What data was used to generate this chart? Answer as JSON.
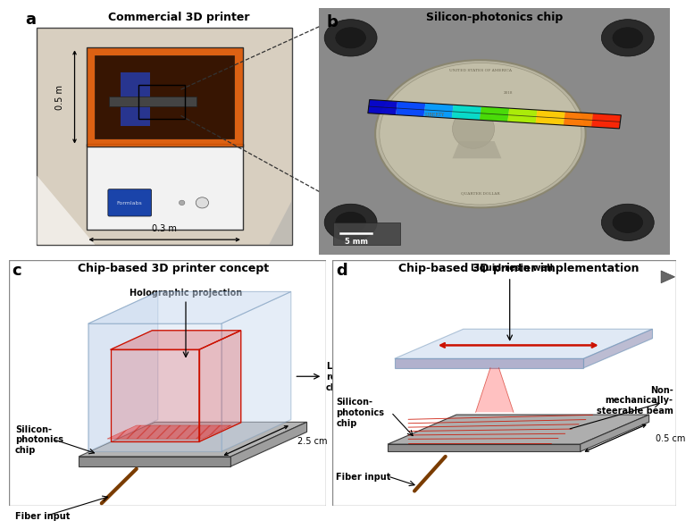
{
  "fig_width": 7.55,
  "fig_height": 5.86,
  "bg_color": "#ffffff",
  "panel_labels": [
    "a",
    "b",
    "c",
    "d"
  ],
  "panel_label_fontsize": 13,
  "panel_label_weight": "bold",
  "title_a": "Commercial 3D printer",
  "title_b": "Silicon-photonics chip",
  "title_c": "Chip-based 3D printer concept",
  "title_d": "Chip-based 3D printer implementation",
  "title_fontsize": 9,
  "annotation_fontsize": 7,
  "glass_blue": "#c8d8ee",
  "glass_alpha": 0.38,
  "scale_bar_text": "5 mm",
  "dim_25": "2.5 cm",
  "dim_05": "0.5 cm",
  "dim_05m": "0.5 m",
  "dim_03m": "0.3 m",
  "label_holographic": "Holographic projection",
  "label_liquid_resin_chamber": "Liquid-\nresin\nchamber",
  "label_silicon_photonics_c": "Silicon-\nphotonics\nchip",
  "label_fiber_input_c": "Fiber input",
  "label_liquid_resin_well": "Liquid-resin well",
  "label_non_mech": "Non-\nmechanically-\nsteerable beam",
  "label_silicon_photonics_d": "Silicon-\nphotonics\nchip",
  "label_fiber_input_d": "Fiber input",
  "chip_colors": [
    "#0000cc",
    "#0044ff",
    "#0099ff",
    "#00ddcc",
    "#44dd00",
    "#aaee00",
    "#ffcc00",
    "#ff7700",
    "#ff2200"
  ]
}
